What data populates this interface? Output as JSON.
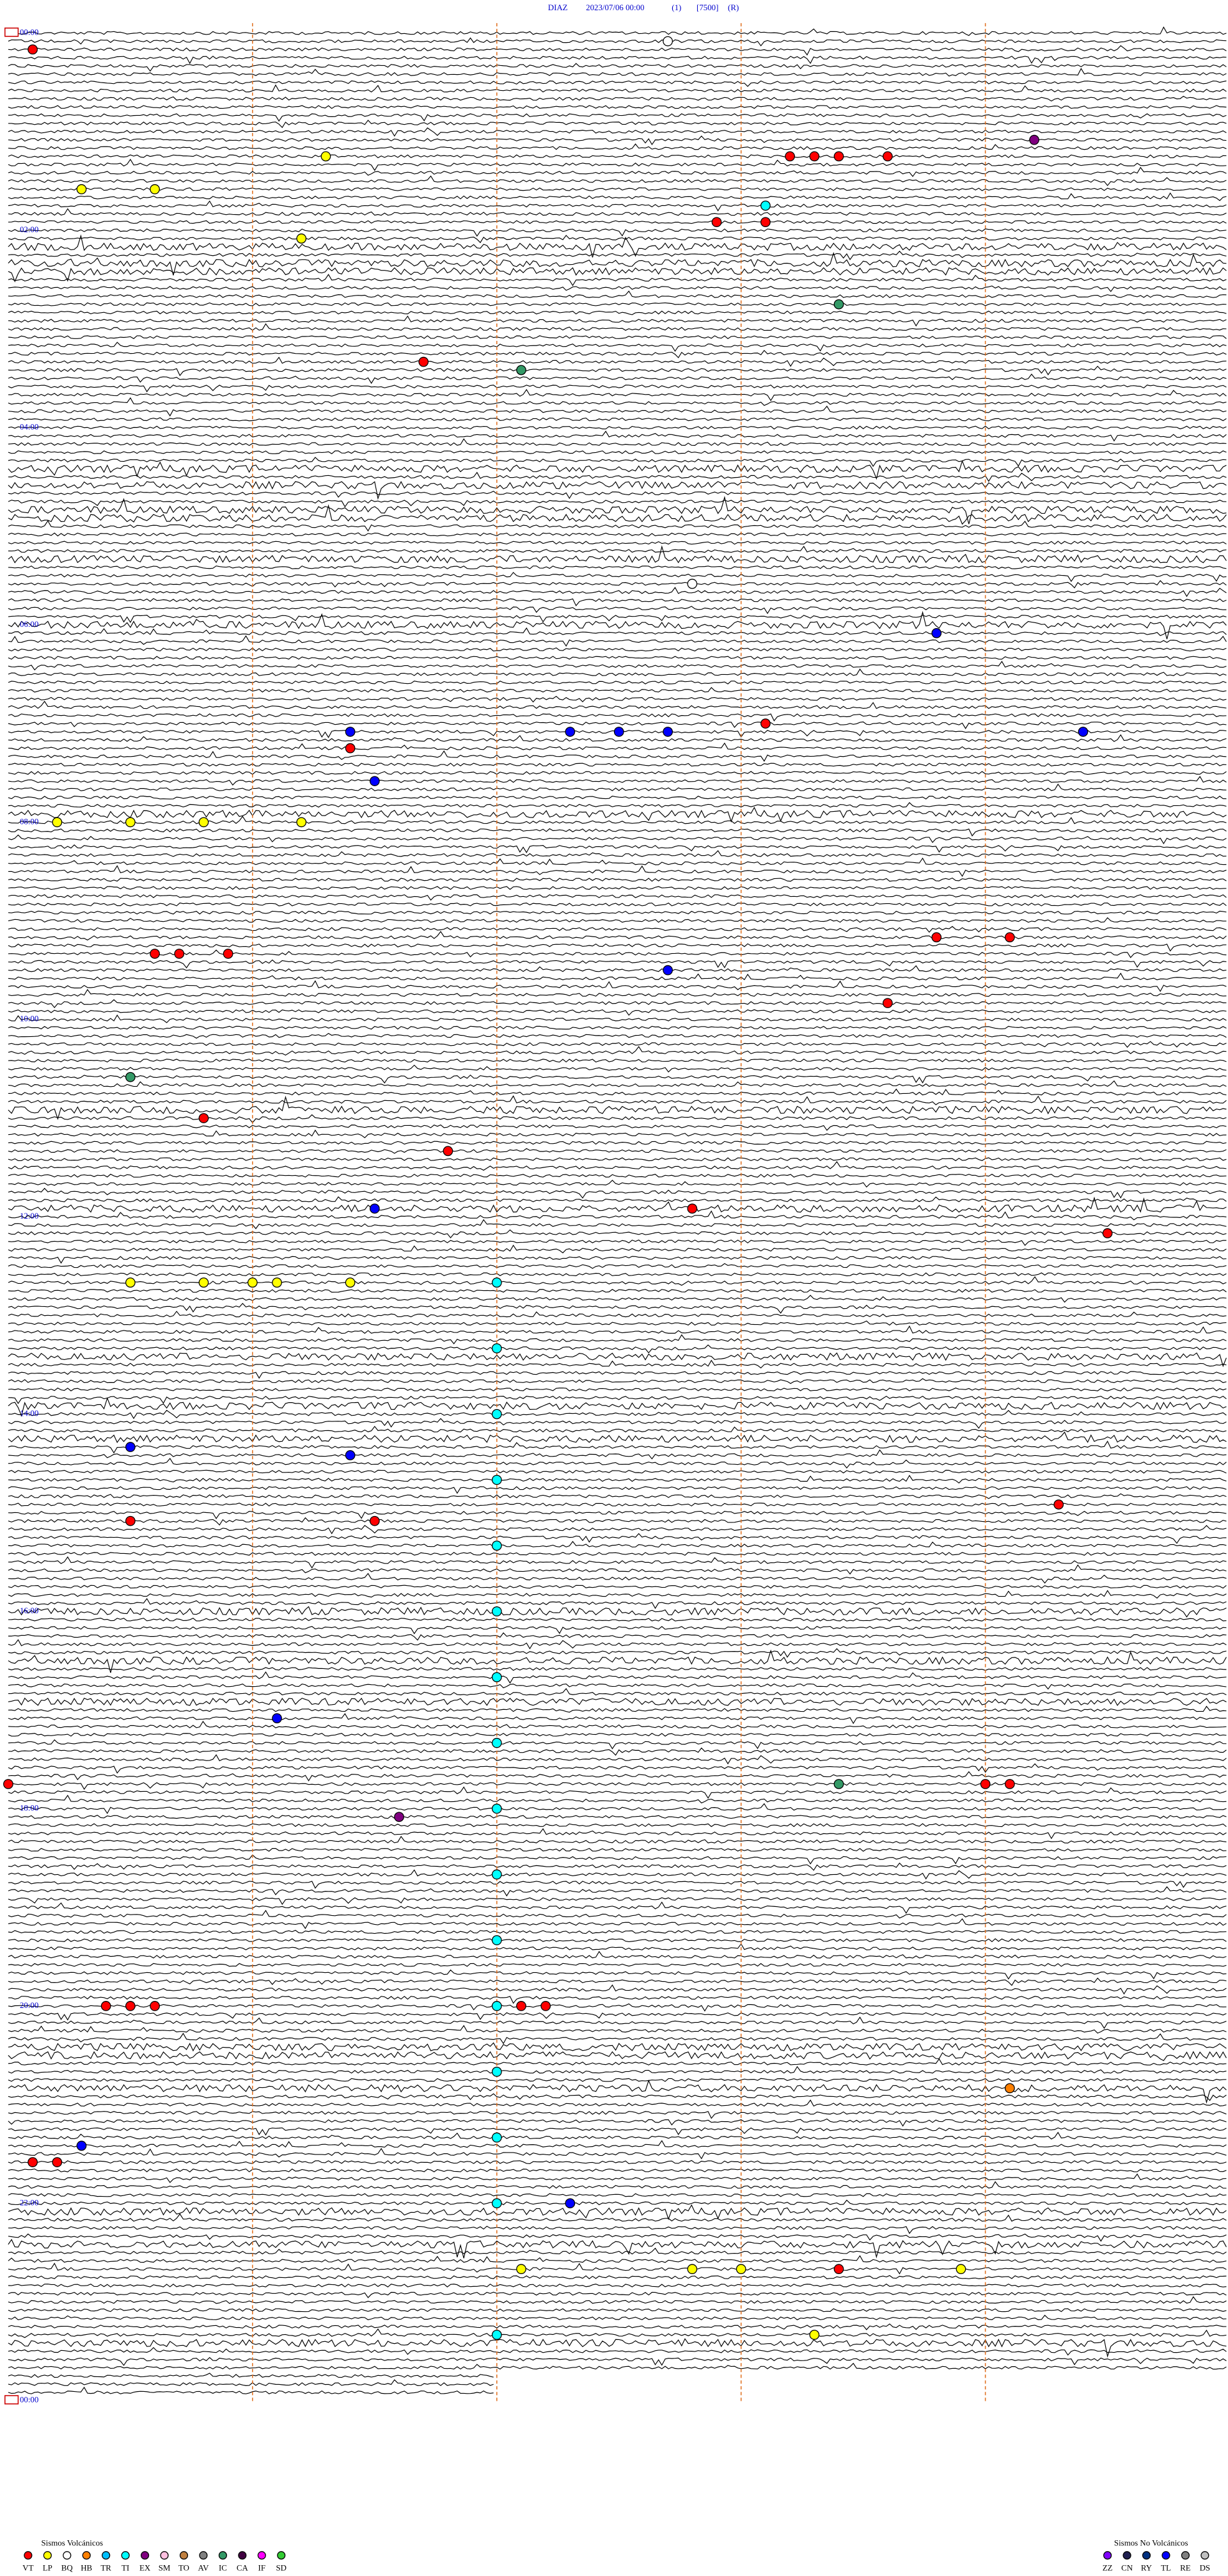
{
  "header": {
    "station": "DIAZ",
    "datetime": "2023/07/06 00:00",
    "channel": "(1)",
    "scale": "[7500]",
    "mode": "(R)"
  },
  "hour_labels": [
    "00:00",
    "02:00",
    "04:00",
    "06:00",
    "08:00",
    "10:00",
    "12:00",
    "14:00",
    "16:00",
    "18:00",
    "20:00",
    "22:00",
    "00:00"
  ],
  "legend": {
    "volcanic": {
      "title": "Sismos Volcánicos",
      "items": [
        {
          "code": "VT",
          "color": "#ff0000"
        },
        {
          "code": "LP",
          "color": "#ffff00"
        },
        {
          "code": "BQ",
          "color": "#ffffff"
        },
        {
          "code": "HB",
          "color": "#ff8000"
        },
        {
          "code": "TR",
          "color": "#00c0ff"
        },
        {
          "code": "TI",
          "color": "#00ffff"
        },
        {
          "code": "EX",
          "color": "#800080"
        },
        {
          "code": "SM",
          "color": "#ffc0e0"
        },
        {
          "code": "TO",
          "color": "#c08040"
        },
        {
          "code": "AV",
          "color": "#808080"
        },
        {
          "code": "IC",
          "color": "#339966"
        },
        {
          "code": "CA",
          "color": "#400040"
        },
        {
          "code": "IF",
          "color": "#ff00ff"
        },
        {
          "code": "SD",
          "color": "#33cc33"
        }
      ]
    },
    "nonvolcanic": {
      "title": "Sismos No Volcánicos",
      "items": [
        {
          "code": "ZZ",
          "color": "#8000ff"
        },
        {
          "code": "CN",
          "color": "#202050"
        },
        {
          "code": "RY",
          "color": "#003080"
        },
        {
          "code": "TL",
          "color": "#0000ff"
        },
        {
          "code": "RE",
          "color": "#808080"
        },
        {
          "code": "DS",
          "color": "#c0c0c0"
        }
      ]
    }
  },
  "events": [
    {
      "t": 10.1,
      "type": "VT"
    },
    {
      "t": 7.7,
      "type": "BQ"
    },
    {
      "t": 69.2,
      "type": "EX"
    },
    {
      "t": 76.3,
      "type": "LP"
    },
    {
      "t": 78.2,
      "type": "VT"
    },
    {
      "t": 78.3,
      "type": "VT"
    },
    {
      "t": 78.4,
      "type": "VT"
    },
    {
      "t": 78.6,
      "type": "VT"
    },
    {
      "t": 95.3,
      "type": "LP"
    },
    {
      "t": 95.6,
      "type": "LP"
    },
    {
      "t": 108.1,
      "type": "TI"
    },
    {
      "t": 117.9,
      "type": "VT"
    },
    {
      "t": 118.1,
      "type": "VT"
    },
    {
      "t": 126.2,
      "type": "LP"
    },
    {
      "t": 168.4,
      "type": "IC"
    },
    {
      "t": 201.7,
      "type": "VT"
    },
    {
      "t": 207.1,
      "type": "IC"
    },
    {
      "t": 337.8,
      "type": "BQ"
    },
    {
      "t": 368.8,
      "type": "TL"
    },
    {
      "t": 423.1,
      "type": "VT"
    },
    {
      "t": 426.4,
      "type": "TL"
    },
    {
      "t": 427.3,
      "type": "TL"
    },
    {
      "t": 427.5,
      "type": "TL"
    },
    {
      "t": 427.7,
      "type": "TL"
    },
    {
      "t": 429.4,
      "type": "TL"
    },
    {
      "t": 436.4,
      "type": "VT"
    },
    {
      "t": 456.5,
      "type": "TL"
    },
    {
      "t": 480.2,
      "type": "LP"
    },
    {
      "t": 480.5,
      "type": "LP"
    },
    {
      "t": 480.8,
      "type": "LP"
    },
    {
      "t": 481.2,
      "type": "LP"
    },
    {
      "t": 553.8,
      "type": "VT"
    },
    {
      "t": 554.1,
      "type": "VT"
    },
    {
      "t": 560.6,
      "type": "VT"
    },
    {
      "t": 560.7,
      "type": "VT"
    },
    {
      "t": 560.9,
      "type": "VT"
    },
    {
      "t": 572.7,
      "type": "TL"
    },
    {
      "t": 593.6,
      "type": "VT"
    },
    {
      "t": 635.5,
      "type": "IC"
    },
    {
      "t": 660.8,
      "type": "VT"
    },
    {
      "t": 681.8,
      "type": "VT"
    },
    {
      "t": 716.5,
      "type": "TL"
    },
    {
      "t": 717.8,
      "type": "VT"
    },
    {
      "t": 734.5,
      "type": "VT"
    },
    {
      "t": 760.5,
      "type": "LP"
    },
    {
      "t": 760.8,
      "type": "LP"
    },
    {
      "t": 761.0,
      "type": "LP"
    },
    {
      "t": 761.1,
      "type": "LP"
    },
    {
      "t": 761.4,
      "type": "LP"
    },
    {
      "t": 762.0,
      "type": "TI"
    },
    {
      "t": 802.0,
      "type": "TI"
    },
    {
      "t": 842.0,
      "type": "TI"
    },
    {
      "t": 860.5,
      "type": "TL"
    },
    {
      "t": 866.4,
      "type": "TL"
    },
    {
      "t": 882.0,
      "type": "TI"
    },
    {
      "t": 899.3,
      "type": "VT"
    },
    {
      "t": 905.5,
      "type": "VT"
    },
    {
      "t": 906.5,
      "type": "VT"
    },
    {
      "t": 922.0,
      "type": "TI"
    },
    {
      "t": 962.0,
      "type": "TI"
    },
    {
      "t": 1002.0,
      "type": "TI"
    },
    {
      "t": 1026.1,
      "type": "TL"
    },
    {
      "t": 1042.0,
      "type": "TI"
    },
    {
      "t": 1065.0,
      "type": "VT"
    },
    {
      "t": 1068.4,
      "type": "IC"
    },
    {
      "t": 1069.0,
      "type": "VT"
    },
    {
      "t": 1069.1,
      "type": "VT"
    },
    {
      "t": 1082.0,
      "type": "TI"
    },
    {
      "t": 1086.6,
      "type": "EX"
    },
    {
      "t": 1122.0,
      "type": "TI"
    },
    {
      "t": 1162.0,
      "type": "TI"
    },
    {
      "t": 1200.4,
      "type": "VT"
    },
    {
      "t": 1200.5,
      "type": "VT"
    },
    {
      "t": 1200.6,
      "type": "VT"
    },
    {
      "t": 1202.1,
      "type": "VT"
    },
    {
      "t": 1202.2,
      "type": "VT"
    },
    {
      "t": 1202.0,
      "type": "TI"
    },
    {
      "t": 1242.0,
      "type": "TI"
    },
    {
      "t": 1254.1,
      "type": "HB"
    },
    {
      "t": 1282.0,
      "type": "TI"
    },
    {
      "t": 1285.3,
      "type": "TL"
    },
    {
      "t": 1295.1,
      "type": "VT"
    },
    {
      "t": 1295.2,
      "type": "VT"
    },
    {
      "t": 1322.3,
      "type": "TL"
    },
    {
      "t": 1322.0,
      "type": "TI"
    },
    {
      "t": 1362.1,
      "type": "LP"
    },
    {
      "t": 1362.8,
      "type": "LP"
    },
    {
      "t": 1363.0,
      "type": "LP"
    },
    {
      "t": 1363.4,
      "type": "VT"
    },
    {
      "t": 1363.9,
      "type": "LP"
    },
    {
      "t": 1402.0,
      "type": "TI"
    },
    {
      "t": 1403.3,
      "type": "LP"
    }
  ]
}
